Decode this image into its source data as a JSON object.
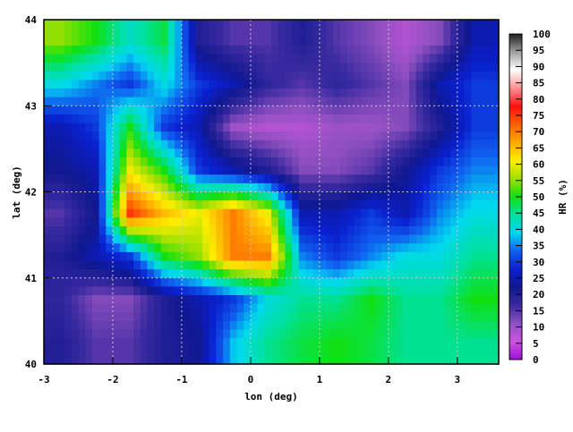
{
  "chart_data": {
    "type": "heatmap",
    "xlabel": "lon (deg)",
    "ylabel": "lat (deg)",
    "colorbar_label": "HR (%)",
    "xlim": [
      -3,
      3.6
    ],
    "ylim": [
      40,
      44
    ],
    "xticks": [
      "-3",
      "-2",
      "-1",
      "0",
      "1",
      "2",
      "3"
    ],
    "yticks": [
      "40",
      "41",
      "42",
      "43",
      "44"
    ],
    "cbar_ticks": [
      "0",
      "5",
      "10",
      "15",
      "20",
      "25",
      "30",
      "35",
      "40",
      "45",
      "50",
      "55",
      "60",
      "65",
      "70",
      "75",
      "80",
      "85",
      "90",
      "95",
      "100"
    ],
    "cbar_range": [
      0,
      100
    ],
    "grid": true,
    "colormap": [
      "#9a10d8",
      "#cc55e0",
      "#9050c0",
      "#3a2aa0",
      "#101890",
      "#0a20d0",
      "#1060f0",
      "#00d8f0",
      "#00e0a0",
      "#10e010",
      "#a0e000",
      "#ffee00",
      "#ffaa00",
      "#ff6000",
      "#ff1010",
      "#ff9090",
      "#ffffff",
      "#a0a0a0",
      "#202020"
    ],
    "lon": [
      -2.75,
      -2.25,
      -1.75,
      -1.25,
      -0.75,
      -0.25,
      0.25,
      0.75,
      1.25,
      1.75,
      2.25,
      2.75,
      3.25
    ],
    "lat": [
      43.75,
      43.25,
      42.75,
      42.25,
      41.75,
      41.25,
      40.75,
      40.25
    ],
    "values": [
      [
        55,
        50,
        42,
        48,
        20,
        15,
        15,
        20,
        15,
        12,
        8,
        12,
        25
      ],
      [
        40,
        35,
        30,
        40,
        30,
        25,
        18,
        15,
        18,
        15,
        12,
        25,
        30
      ],
      [
        25,
        30,
        50,
        30,
        25,
        10,
        8,
        8,
        10,
        10,
        12,
        20,
        30
      ],
      [
        22,
        25,
        60,
        50,
        30,
        25,
        20,
        12,
        12,
        15,
        22,
        30,
        35
      ],
      [
        15,
        22,
        75,
        65,
        60,
        70,
        60,
        25,
        25,
        30,
        25,
        35,
        40
      ],
      [
        20,
        25,
        30,
        50,
        55,
        70,
        70,
        35,
        30,
        35,
        40,
        40,
        45
      ],
      [
        18,
        12,
        12,
        20,
        25,
        30,
        40,
        45,
        45,
        50,
        45,
        45,
        50
      ],
      [
        20,
        15,
        15,
        20,
        22,
        38,
        45,
        48,
        50,
        48,
        45,
        45,
        45
      ]
    ]
  }
}
